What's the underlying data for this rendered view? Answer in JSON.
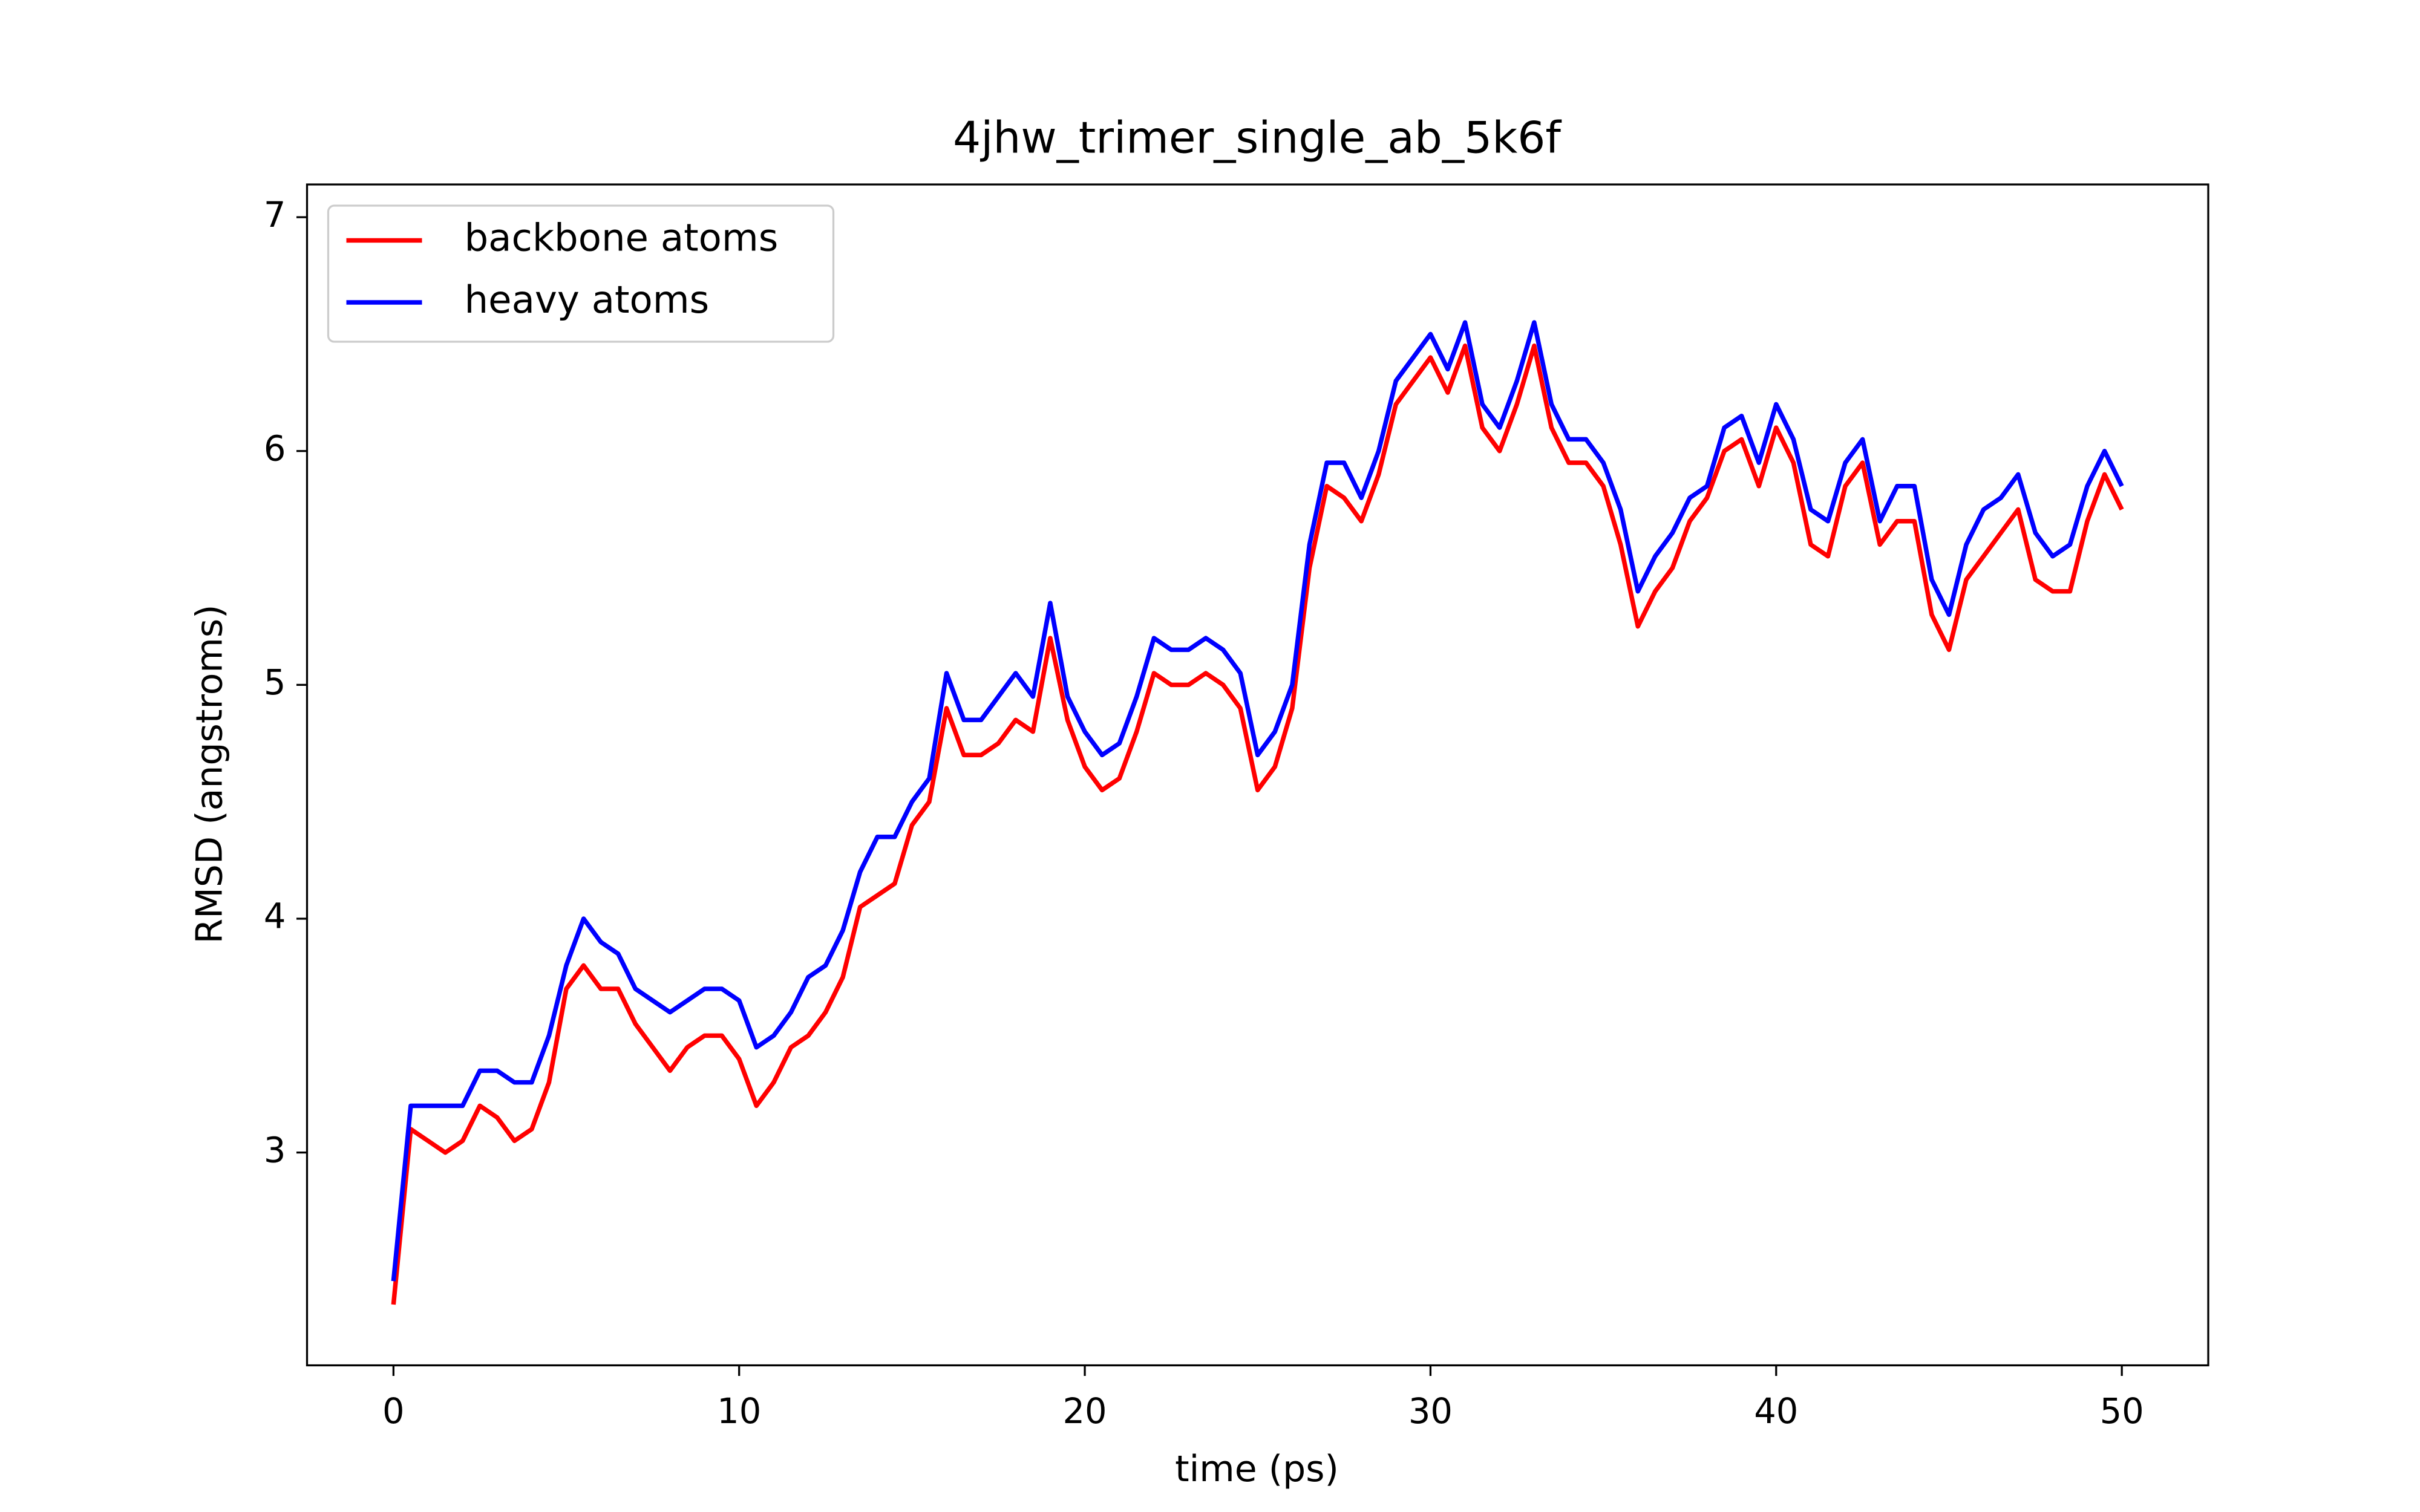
{
  "chart_data": {
    "type": "line",
    "title": "4jhw_trimer_single_ab_5k6f",
    "x_label": "time (ps)",
    "y_label": "RMSD (angstroms)",
    "xlim": [
      -2.5,
      52.5
    ],
    "ylim": [
      2.09,
      7.14
    ],
    "xticks": [
      0,
      10,
      20,
      30,
      40,
      50
    ],
    "yticks": [
      3,
      4,
      5,
      6,
      7
    ],
    "legend": "upper left",
    "grid": false,
    "x": [
      0,
      0.5,
      1,
      1.5,
      2,
      2.5,
      3,
      3.5,
      4,
      4.5,
      5,
      5.5,
      6,
      6.5,
      7,
      7.5,
      8,
      8.5,
      9,
      9.5,
      10,
      10.5,
      11,
      11.5,
      12,
      12.5,
      13,
      13.5,
      14,
      14.5,
      15,
      15.5,
      16,
      16.5,
      17,
      17.5,
      18,
      18.5,
      19,
      19.5,
      20,
      20.5,
      21,
      21.5,
      22,
      22.5,
      23,
      23.5,
      24,
      24.5,
      25,
      25.5,
      26,
      26.5,
      27,
      27.5,
      28,
      28.5,
      29,
      29.5,
      30,
      30.5,
      31,
      31.5,
      32,
      32.5,
      33,
      33.5,
      34,
      34.5,
      35,
      35.5,
      36,
      36.5,
      37,
      37.5,
      38,
      38.5,
      39,
      39.5,
      40,
      40.5,
      41,
      41.5,
      42,
      42.5,
      43,
      43.5,
      44,
      44.5,
      45,
      45.5,
      46,
      46.5,
      47,
      47.5,
      48,
      48.5,
      49,
      49.5,
      50
    ],
    "series": [
      {
        "name": "backbone atoms",
        "color": "#ff0000",
        "values": [
          2.35,
          3.1,
          3.05,
          3.0,
          3.05,
          3.2,
          3.15,
          3.05,
          3.1,
          3.3,
          3.7,
          3.8,
          3.7,
          3.7,
          3.55,
          3.45,
          3.35,
          3.45,
          3.5,
          3.5,
          3.4,
          3.2,
          3.3,
          3.45,
          3.5,
          3.6,
          3.75,
          4.05,
          4.1,
          4.15,
          4.4,
          4.5,
          4.9,
          4.7,
          4.7,
          4.75,
          4.85,
          4.8,
          5.2,
          4.85,
          4.65,
          4.55,
          4.6,
          4.8,
          5.05,
          5.0,
          5.0,
          5.05,
          5.0,
          4.9,
          4.55,
          4.65,
          4.9,
          5.5,
          5.85,
          5.8,
          5.7,
          5.9,
          6.2,
          6.3,
          6.4,
          6.25,
          6.45,
          6.1,
          6.0,
          6.2,
          6.45,
          6.1,
          5.95,
          5.95,
          5.85,
          5.6,
          5.25,
          5.4,
          5.5,
          5.7,
          5.8,
          6.0,
          6.05,
          5.85,
          6.1,
          5.95,
          5.6,
          5.55,
          5.85,
          5.95,
          5.6,
          5.7,
          5.7,
          5.3,
          5.15,
          5.45,
          5.55,
          5.65,
          5.75,
          5.45,
          5.4,
          5.4,
          5.7,
          5.9,
          5.75
        ]
      },
      {
        "name": "heavy atoms",
        "color": "#0000ff",
        "values": [
          2.45,
          3.2,
          3.2,
          3.2,
          3.2,
          3.35,
          3.35,
          3.3,
          3.3,
          3.5,
          3.8,
          4.0,
          3.9,
          3.85,
          3.7,
          3.65,
          3.6,
          3.65,
          3.7,
          3.7,
          3.65,
          3.45,
          3.5,
          3.6,
          3.75,
          3.8,
          3.95,
          4.2,
          4.35,
          4.35,
          4.5,
          4.6,
          5.05,
          4.85,
          4.85,
          4.95,
          5.05,
          4.95,
          5.35,
          4.95,
          4.8,
          4.7,
          4.75,
          4.95,
          5.2,
          5.15,
          5.15,
          5.2,
          5.15,
          5.05,
          4.7,
          4.8,
          5.0,
          5.6,
          5.95,
          5.95,
          5.8,
          6.0,
          6.3,
          6.4,
          6.5,
          6.35,
          6.55,
          6.2,
          6.1,
          6.3,
          6.55,
          6.2,
          6.05,
          6.05,
          5.95,
          5.75,
          5.4,
          5.55,
          5.65,
          5.8,
          5.85,
          6.1,
          6.15,
          5.95,
          6.2,
          6.05,
          5.75,
          5.7,
          5.95,
          6.05,
          5.7,
          5.85,
          5.85,
          5.45,
          5.3,
          5.6,
          5.75,
          5.8,
          5.9,
          5.65,
          5.55,
          5.6,
          5.85,
          6.0,
          5.85
        ]
      }
    ]
  }
}
